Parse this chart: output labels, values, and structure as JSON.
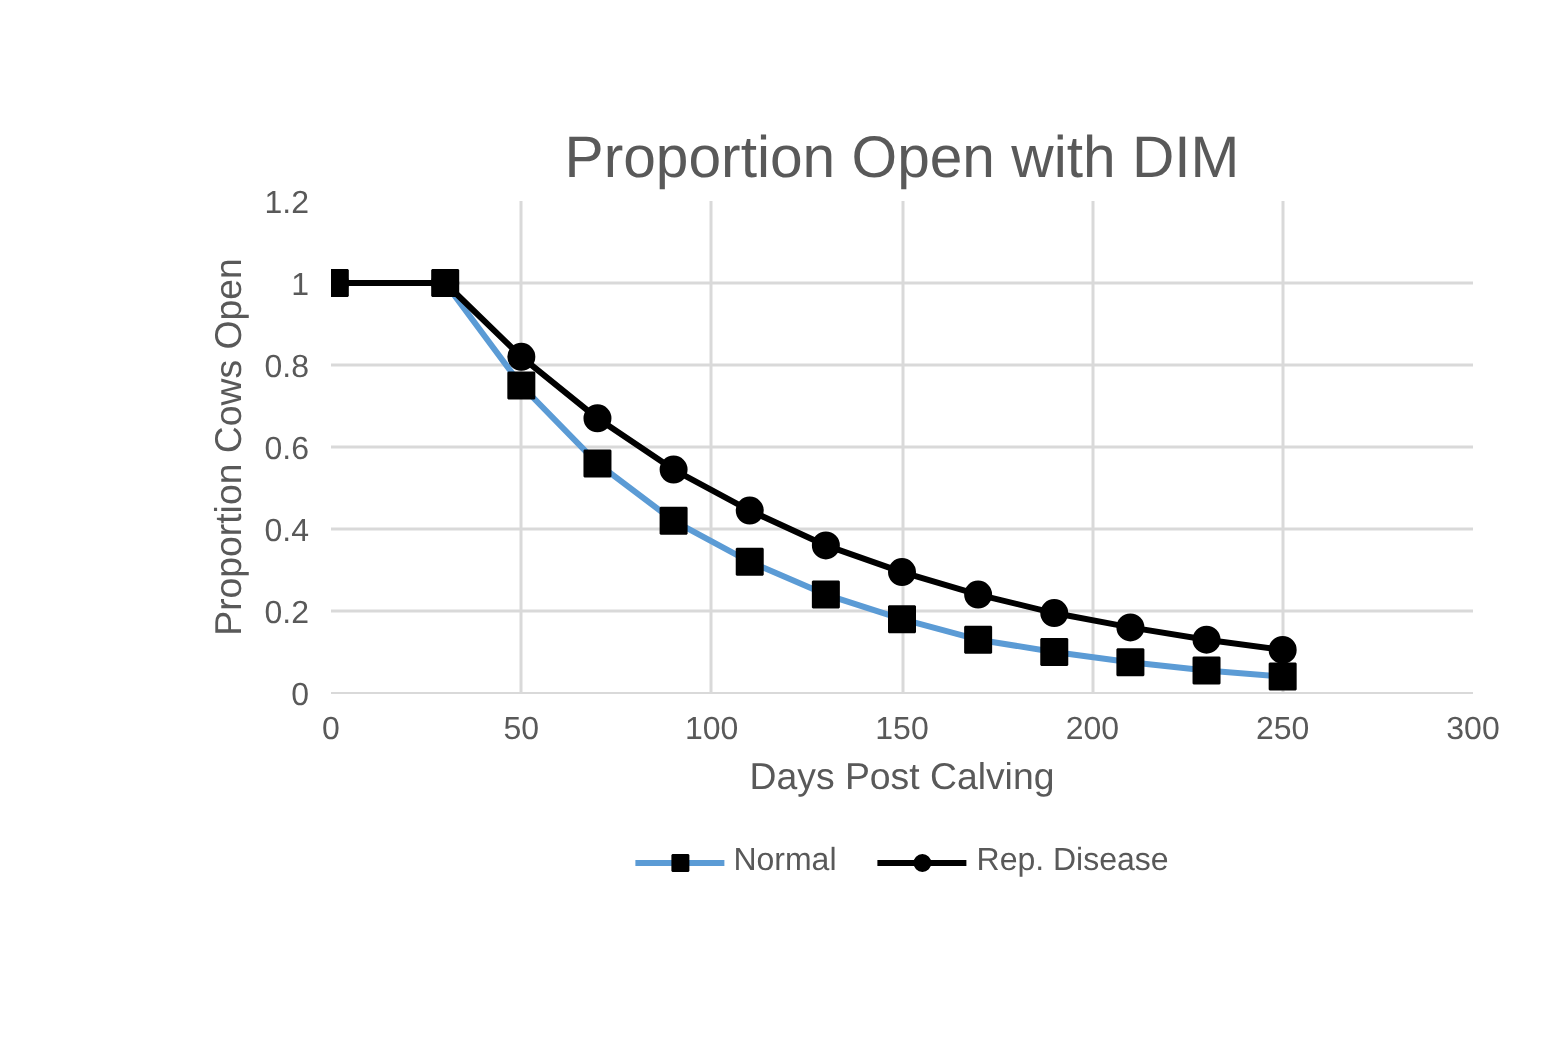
{
  "chart_data": {
    "type": "line",
    "title": "Proportion Open with DIM",
    "xlabel": "Days Post Calving",
    "ylabel": "Proportion Cows Open",
    "x": [
      1,
      30,
      50,
      70,
      90,
      110,
      130,
      150,
      170,
      190,
      210,
      230,
      250
    ],
    "series": [
      {
        "name": "Normal",
        "color": "#5b9bd5",
        "marker": "square",
        "values": [
          1,
          1,
          0.75,
          0.56,
          0.42,
          0.32,
          0.24,
          0.18,
          0.13,
          0.1,
          0.075,
          0.055,
          0.04
        ]
      },
      {
        "name": "Rep. Disease",
        "color": "#000000",
        "marker": "circle",
        "values": [
          1,
          1,
          0.82,
          0.67,
          0.545,
          0.445,
          0.36,
          0.295,
          0.24,
          0.195,
          0.16,
          0.13,
          0.105
        ]
      }
    ],
    "xlim": [
      0,
      300
    ],
    "xticks": [
      0,
      50,
      100,
      150,
      200,
      250,
      300
    ],
    "ylim": [
      0,
      1.2
    ],
    "yticks": [
      0,
      0.2,
      0.4,
      0.6,
      0.8,
      1,
      1.2
    ],
    "grid": true,
    "legend": "bottom"
  }
}
